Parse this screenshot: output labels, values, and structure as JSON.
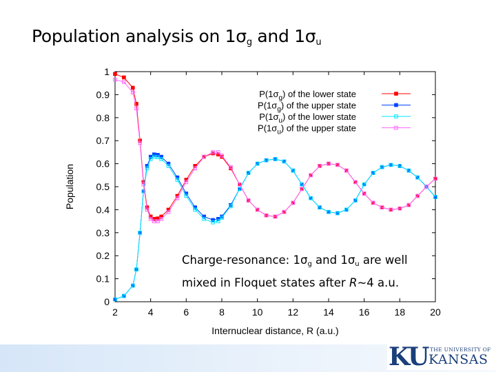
{
  "slide": {
    "title_prefix": "Population analysis on 1σ",
    "title_sub1": "g",
    "title_mid": " and 1σ",
    "title_sub2": "u"
  },
  "annotation": {
    "line1_prefix": "Charge-resonance: 1σ",
    "line1_sub1": "g",
    "line1_mid": " and 1σ",
    "line1_sub2": "u",
    "line1_suffix": " are well",
    "line2_prefix": "mixed in Floquet states after ",
    "line2_italic": "R",
    "line2_suffix": "~4 a.u."
  },
  "logo": {
    "ku": "KU",
    "university": "THE UNIVERSITY OF",
    "kansas": "KANSAS"
  },
  "chart_data": {
    "type": "line",
    "title": "",
    "xlabel": "Internuclear distance, R (a.u.)",
    "ylabel": "Population",
    "xlim": [
      2,
      20
    ],
    "ylim": [
      0,
      1
    ],
    "xticks": [
      2,
      4,
      6,
      8,
      10,
      12,
      14,
      16,
      18,
      20
    ],
    "yticks": [
      0,
      0.1,
      0.2,
      0.3,
      0.4,
      0.5,
      0.6,
      0.7,
      0.8,
      0.9,
      1
    ],
    "grid": false,
    "legend_position": "top-right",
    "series": [
      {
        "name": "P(1σg) of the lower state",
        "legend_base": "P(1σ",
        "legend_sub": "g",
        "legend_rest": ") of the lower state",
        "color": "#ff0000",
        "marker": "filled-square",
        "x": [
          2,
          2.5,
          3,
          3.2,
          3.4,
          3.6,
          3.8,
          4,
          4.2,
          4.4,
          4.6,
          5,
          5.5,
          6,
          6.5,
          7,
          7.5,
          7.8,
          8,
          8.5,
          9,
          9.5,
          10,
          10.5,
          11,
          11.5,
          12,
          12.5,
          13,
          13.5,
          14,
          14.5,
          15,
          15.5,
          16,
          16.5,
          17,
          17.5,
          18,
          18.5,
          19,
          19.5,
          20
        ],
        "y": [
          0.99,
          0.975,
          0.93,
          0.86,
          0.7,
          0.52,
          0.41,
          0.37,
          0.36,
          0.362,
          0.37,
          0.4,
          0.46,
          0.53,
          0.59,
          0.63,
          0.645,
          0.64,
          0.63,
          0.58,
          0.51,
          0.44,
          0.4,
          0.375,
          0.37,
          0.39,
          0.43,
          0.49,
          0.55,
          0.59,
          0.6,
          0.595,
          0.57,
          0.52,
          0.47,
          0.43,
          0.41,
          0.4,
          0.405,
          0.42,
          0.46,
          0.5,
          0.535
        ]
      },
      {
        "name": "P(1σg) of the upper state",
        "legend_base": "P(1σ",
        "legend_sub": "g",
        "legend_rest": ") of the upper state",
        "color": "#0044ff",
        "marker": "filled-square",
        "x": [
          2,
          2.5,
          3,
          3.2,
          3.4,
          3.6,
          3.8,
          4,
          4.2,
          4.4,
          4.6,
          5,
          5.5,
          6,
          6.5,
          7,
          7.5,
          7.8,
          8,
          8.5,
          9,
          9.5,
          10,
          10.5,
          11,
          11.5,
          12,
          12.5,
          13,
          13.5,
          14,
          14.5,
          15,
          15.5,
          16,
          16.5,
          17,
          17.5,
          18,
          18.5,
          19,
          19.5,
          20
        ],
        "y": [
          0.01,
          0.025,
          0.07,
          0.14,
          0.3,
          0.48,
          0.59,
          0.63,
          0.64,
          0.638,
          0.63,
          0.6,
          0.54,
          0.47,
          0.41,
          0.37,
          0.355,
          0.36,
          0.37,
          0.42,
          0.49,
          0.56,
          0.6,
          0.615,
          0.62,
          0.61,
          0.57,
          0.51,
          0.45,
          0.41,
          0.39,
          0.385,
          0.4,
          0.44,
          0.51,
          0.56,
          0.585,
          0.595,
          0.59,
          0.57,
          0.54,
          0.5,
          0.455
        ]
      },
      {
        "name": "P(1σu) of the lower state",
        "legend_base": "P(1σ",
        "legend_sub": "u",
        "legend_rest": ") of the lower state",
        "color": "#00e5ff",
        "marker": "open-square",
        "x": [
          2,
          2.5,
          3,
          3.2,
          3.4,
          3.6,
          3.8,
          4,
          4.2,
          4.4,
          4.6,
          5,
          5.5,
          6,
          6.5,
          7,
          7.5,
          7.8,
          8,
          8.5,
          9,
          9.5,
          10,
          10.5,
          11,
          11.5,
          12,
          12.5,
          13,
          13.5,
          14,
          14.5,
          15,
          15.5,
          16,
          16.5,
          17,
          17.5,
          18,
          18.5,
          19,
          19.5,
          20
        ],
        "y": [
          0.01,
          0.025,
          0.07,
          0.14,
          0.3,
          0.48,
          0.58,
          0.62,
          0.63,
          0.628,
          0.62,
          0.59,
          0.53,
          0.46,
          0.4,
          0.36,
          0.345,
          0.35,
          0.365,
          0.415,
          0.49,
          0.56,
          0.6,
          0.615,
          0.62,
          0.61,
          0.57,
          0.51,
          0.45,
          0.41,
          0.39,
          0.385,
          0.4,
          0.44,
          0.51,
          0.56,
          0.585,
          0.595,
          0.59,
          0.57,
          0.54,
          0.5,
          0.455
        ]
      },
      {
        "name": "P(1σu) of the upper state",
        "legend_base": "P(1σ",
        "legend_sub": "u",
        "legend_rest": ") of the upper state",
        "color": "#ff66ff",
        "marker": "open-square",
        "x": [
          2,
          2.5,
          3,
          3.2,
          3.4,
          3.6,
          3.8,
          4,
          4.2,
          4.4,
          4.6,
          5,
          5.5,
          6,
          6.5,
          7,
          7.5,
          7.8,
          8,
          8.5,
          9,
          9.5,
          10,
          10.5,
          11,
          11.5,
          12,
          12.5,
          13,
          13.5,
          14,
          14.5,
          15,
          15.5,
          16,
          16.5,
          17,
          17.5,
          18,
          18.5,
          19,
          19.5,
          20
        ],
        "y": [
          0.965,
          0.955,
          0.91,
          0.84,
          0.69,
          0.51,
          0.4,
          0.36,
          0.35,
          0.35,
          0.36,
          0.39,
          0.45,
          0.52,
          0.58,
          0.63,
          0.65,
          0.65,
          0.635,
          0.585,
          0.51,
          0.44,
          0.4,
          0.375,
          0.37,
          0.39,
          0.43,
          0.49,
          0.55,
          0.59,
          0.6,
          0.595,
          0.57,
          0.52,
          0.47,
          0.43,
          0.41,
          0.4,
          0.405,
          0.42,
          0.46,
          0.5,
          0.535
        ]
      }
    ]
  }
}
